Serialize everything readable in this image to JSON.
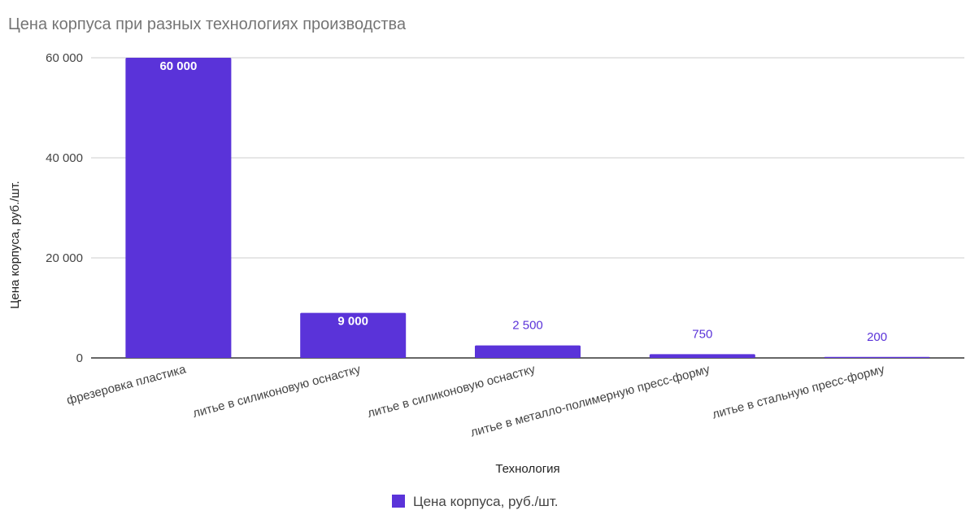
{
  "chart_data": {
    "type": "bar",
    "title": "Цена корпуса при разных технологиях производства",
    "xlabel": "Технология",
    "ylabel": "Цена корпуса, руб./шт.",
    "categories": [
      "фрезеровка пластика",
      "литье в силиконовую оснастку",
      "литье в силиконовую оснастку",
      "литье в металло-полимерную пресс-форму",
      "литье в стальную пресс-форму"
    ],
    "series": [
      {
        "name": "Цена корпуса, руб./шт.",
        "values": [
          60000,
          9000,
          2500,
          750,
          200
        ],
        "data_labels": [
          "60 000",
          "9 000",
          "2 500",
          "750",
          "200"
        ],
        "color": "#5a33d9"
      }
    ],
    "ylim": [
      0,
      60000
    ],
    "yticks": [
      0,
      20000,
      40000,
      60000
    ],
    "ytick_labels": [
      "0",
      "20 000",
      "40 000",
      "60 000"
    ],
    "grid": true,
    "legend": "bottom",
    "colors": {
      "bar": "#5a33d9",
      "data_label_outside": "#5a33d9",
      "data_label_inside": "#ffffff",
      "gridline": "#cccccc",
      "baseline": "#333333"
    }
  }
}
